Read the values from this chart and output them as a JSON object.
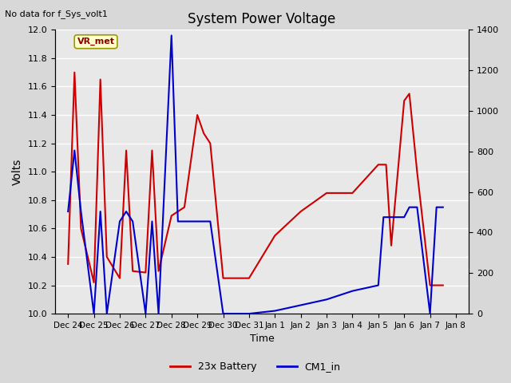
{
  "title": "System Power Voltage",
  "top_left_text": "No data for f_Sys_volt1",
  "ylabel_left": "Volts",
  "xlabel": "Time",
  "ylim_left": [
    10.0,
    12.0
  ],
  "ylim_right": [
    0,
    1400
  ],
  "yticks_right": [
    0,
    200,
    400,
    600,
    800,
    1000,
    1200,
    1400
  ],
  "yticks_left": [
    10.0,
    10.2,
    10.4,
    10.6,
    10.8,
    11.0,
    11.2,
    11.4,
    11.6,
    11.8,
    12.0
  ],
  "xtick_labels": [
    "Dec 24",
    "Dec 25",
    "Dec 26",
    "Dec 27",
    "Dec 28",
    "Dec 29",
    "Dec 30",
    "Dec 31",
    "Jan 1",
    "Jan 2",
    "Jan 3",
    "Jan 4",
    "Jan 5",
    "Jan 6",
    "Jan 7",
    "Jan 8"
  ],
  "annotation_text": "VR_met",
  "background_color": "#e8e8e8",
  "grid_color": "#ffffff",
  "fig_color": "#d8d8d8",
  "red_line_color": "#cc0000",
  "blue_line_color": "#0000cc",
  "legend_labels": [
    "23x Battery",
    "CM1_in"
  ],
  "red_x": [
    0,
    0.25,
    0.5,
    1.0,
    1.25,
    1.5,
    2.0,
    2.25,
    2.5,
    3.0,
    3.25,
    3.5,
    4.0,
    4.5,
    5.0,
    5.25,
    5.5,
    6.0,
    7.0,
    8.0,
    9.0,
    10.0,
    11.0,
    12.0,
    12.3,
    12.5,
    13.0,
    13.2,
    13.5,
    14.0,
    14.3,
    14.5
  ],
  "red_y": [
    10.35,
    11.7,
    10.6,
    10.22,
    11.65,
    10.4,
    10.25,
    11.15,
    10.3,
    10.29,
    11.15,
    10.3,
    10.69,
    10.75,
    11.4,
    11.27,
    11.2,
    10.25,
    10.25,
    10.55,
    10.72,
    10.85,
    10.85,
    11.05,
    11.05,
    10.48,
    11.5,
    11.55,
    11.0,
    10.2,
    10.2,
    10.2
  ],
  "blue_x": [
    0,
    0.25,
    0.5,
    1.0,
    1.25,
    1.5,
    2.0,
    2.25,
    2.5,
    3.0,
    3.25,
    3.5,
    4.0,
    4.25,
    4.5,
    5.0,
    5.25,
    5.5,
    6.0,
    7.0,
    8.0,
    9.0,
    10.0,
    11.0,
    12.0,
    12.2,
    12.5,
    13.0,
    13.2,
    13.5,
    14.0,
    14.25,
    14.5
  ],
  "blue_y": [
    10.72,
    11.15,
    10.72,
    10.0,
    10.72,
    10.0,
    10.65,
    10.72,
    10.65,
    10.0,
    10.65,
    10.0,
    11.96,
    10.65,
    10.65,
    10.65,
    10.65,
    10.65,
    10.0,
    10.0,
    10.02,
    10.06,
    10.1,
    10.16,
    10.2,
    10.68,
    10.68,
    10.68,
    10.75,
    10.75,
    10.0,
    10.75,
    10.75
  ]
}
